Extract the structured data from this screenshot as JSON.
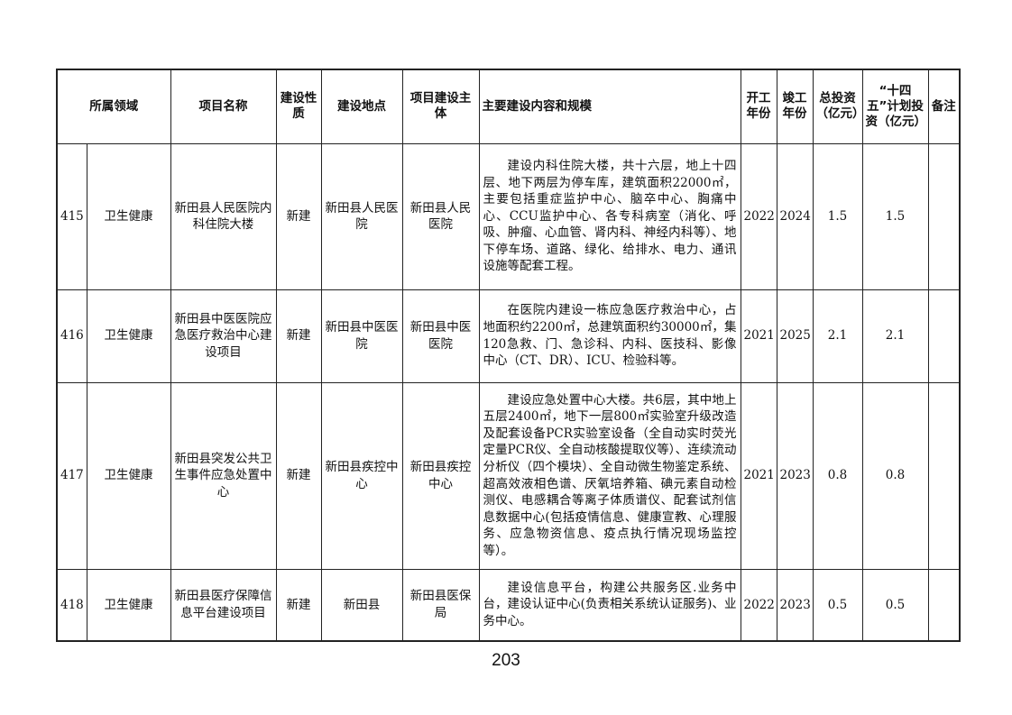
{
  "headers": {
    "domain": "所属领域",
    "name": "项目名称",
    "nature": "建设性质",
    "location": "建设地点",
    "subject": "项目建设主体",
    "content": "主要建设内容和规模",
    "start": "开工年份",
    "end": "竣工年份",
    "total": "总投资（亿元）",
    "plan": "“十四五”计划投资（亿元）",
    "note": "备注"
  },
  "rows": [
    {
      "no": "415",
      "domain": "卫生健康",
      "name": "新田县人民医院内科住院大楼",
      "nature": "新建",
      "location": "新田县人民医院",
      "subject": "新田县人民医院",
      "content": "建设内科住院大楼，共十六层，地上十四层、地下两层为停车库，建筑面积22000㎡，主要包括重症监护中心、脑卒中心、胸痛中心、CCU监护中心、各专科病室（消化、呼吸、肿瘤、心血管、肾内科、神经内科等）、地下停车场、道路、绿化、给排水、电力、通讯设施等配套工程。",
      "start": "2022",
      "end": "2024",
      "total": "1.5",
      "plan": "1.5",
      "note": ""
    },
    {
      "no": "416",
      "domain": "卫生健康",
      "name": "新田县中医医院应急医疗救治中心建设项目",
      "nature": "新建",
      "location": "新田县中医医院",
      "subject": "新田县中医医院",
      "content": "在医院内建设一栋应急医疗救治中心，占地面积约2200㎡，总建筑面积约30000㎡，集120急救、门、急诊科、内科、医技科、影像中心（CT、DR）、ICU、检验科等。",
      "start": "2021",
      "end": "2025",
      "total": "2.1",
      "plan": "2.1",
      "note": ""
    },
    {
      "no": "417",
      "domain": "卫生健康",
      "name": "新田县突发公共卫生事件应急处置中心",
      "nature": "新建",
      "location": "新田县疾控中心",
      "subject": "新田县疾控中心",
      "content": "建设应急处置中心大楼。共6层，其中地上五层2400㎡，地下一层800㎡实验室升级改造及配套设备PCR实验室设备（全自动实时荧光定量PCR仪、全自动核酸提取仪等）、连续流动分析仪（四个模块）、全自动微生物鉴定系统、超高效液相色谱、厌氧培养箱、碘元素自动检测仪、电感耦合等离子体质谱仪、配套试剂信息数据中心(包括疫情信息、健康宣教、心理服务、应急物资信息、疫点执行情况现场监控等）。",
      "start": "2021",
      "end": "2023",
      "total": "0.8",
      "plan": "0.8",
      "note": ""
    },
    {
      "no": "418",
      "domain": "卫生健康",
      "name": "新田县医疗保障信息平台建设项目",
      "nature": "新建",
      "location": "新田县",
      "subject": "新田县医保局",
      "content": "建设信息平台，构建公共服务区.业务中台，建设认证中心(负责相关系统认证服务)、业务中心。",
      "start": "2022",
      "end": "2023",
      "total": "0.5",
      "plan": "0.5",
      "note": ""
    }
  ],
  "page_number": "203"
}
